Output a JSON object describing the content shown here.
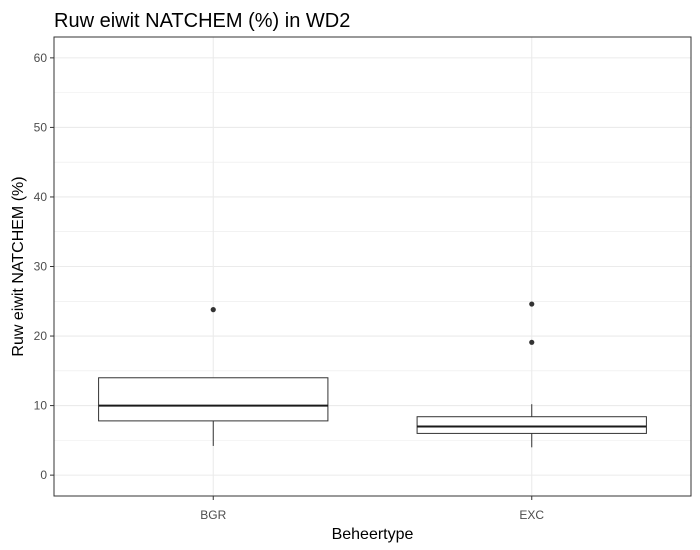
{
  "chart_data": {
    "type": "box",
    "title": "Ruw eiwit NATCHEM (%) in WD2",
    "xlabel": "Beheertype",
    "ylabel": "Ruw eiwit NATCHEM (%)",
    "ylim": [
      -3,
      63
    ],
    "y_ticks": [
      0,
      10,
      20,
      30,
      40,
      50,
      60
    ],
    "y_minor_ticks": [
      5,
      15,
      25,
      35,
      45,
      55
    ],
    "categories": [
      "BGR",
      "EXC"
    ],
    "boxes": [
      {
        "category": "BGR",
        "whisker_low": 4.2,
        "q1": 7.8,
        "median": 10.0,
        "q3": 14.0,
        "whisker_high": 14.0,
        "outliers": [
          23.8
        ]
      },
      {
        "category": "EXC",
        "whisker_low": 4.0,
        "q1": 6.0,
        "median": 7.0,
        "q3": 8.4,
        "whisker_high": 10.2,
        "outliers": [
          19.1,
          24.6
        ]
      }
    ],
    "grid": true,
    "colors": {
      "box_fill": "#ffffff",
      "box_line": "#333333",
      "median_line": "#1a1a1a",
      "grid": "#ebebeb",
      "panel_border": "#333333",
      "outlier": "#333333"
    }
  }
}
